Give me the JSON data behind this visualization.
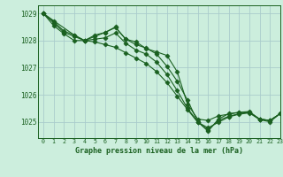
{
  "title": "Graphe pression niveau de la mer (hPa)",
  "background_color": "#cceedd",
  "grid_color": "#aacccc",
  "line_color": "#1a6020",
  "marker_color": "#1a6020",
  "xlim": [
    -0.5,
    23
  ],
  "ylim": [
    1024.4,
    1029.3
  ],
  "yticks": [
    1025,
    1026,
    1027,
    1028,
    1029
  ],
  "xticks": [
    0,
    1,
    2,
    3,
    4,
    5,
    6,
    7,
    8,
    9,
    10,
    11,
    12,
    13,
    14,
    15,
    16,
    17,
    18,
    19,
    20,
    21,
    22,
    23
  ],
  "series": [
    {
      "x": [
        0,
        1,
        2,
        3,
        4,
        5,
        6,
        7,
        8,
        9,
        10,
        11,
        12,
        13,
        14,
        15,
        16,
        17,
        18,
        19,
        20,
        21,
        22,
        23
      ],
      "y": [
        1029.0,
        1028.7,
        1028.35,
        1028.2,
        1028.0,
        1028.15,
        1028.3,
        1028.48,
        1028.05,
        1027.85,
        1027.72,
        1027.5,
        1027.05,
        1026.5,
        1025.8,
        1025.0,
        1024.65,
        1025.1,
        1025.3,
        1025.35,
        1025.35,
        1025.1,
        1025.05,
        1025.3
      ]
    },
    {
      "x": [
        0,
        1,
        2,
        3,
        4,
        5,
        6,
        7,
        8,
        9,
        10,
        11,
        12,
        13,
        14,
        15,
        16,
        17,
        18,
        19,
        20,
        21,
        22,
        23
      ],
      "y": [
        1029.0,
        1028.65,
        1028.3,
        1028.15,
        1028.0,
        1028.05,
        1028.1,
        1028.28,
        1027.9,
        1027.65,
        1027.5,
        1027.2,
        1026.75,
        1026.15,
        1025.5,
        1025.0,
        1024.7,
        1025.05,
        1025.2,
        1025.3,
        1025.35,
        1025.1,
        1025.05,
        1025.3
      ]
    },
    {
      "x": [
        0,
        3,
        4,
        5,
        6,
        7,
        8,
        9,
        10,
        11,
        12,
        13,
        14,
        15,
        16,
        17,
        18,
        19,
        20,
        21,
        22,
        23
      ],
      "y": [
        1029.0,
        1028.2,
        1028.0,
        1028.2,
        1028.3,
        1028.5,
        1028.05,
        1027.95,
        1027.7,
        1027.58,
        1027.45,
        1026.85,
        1025.65,
        1025.1,
        1025.05,
        1025.22,
        1025.28,
        1025.35,
        1025.38,
        1025.1,
        1025.05,
        1025.3
      ]
    },
    {
      "x": [
        0,
        1,
        2,
        3,
        4,
        5,
        6,
        7,
        8,
        9,
        10,
        11,
        12,
        13,
        14,
        15,
        16,
        17,
        18,
        19,
        20,
        21,
        22,
        23
      ],
      "y": [
        1029.0,
        1028.55,
        1028.25,
        1028.0,
        1028.0,
        1027.95,
        1027.85,
        1027.75,
        1027.55,
        1027.35,
        1027.15,
        1026.85,
        1026.45,
        1025.95,
        1025.45,
        1024.98,
        1024.78,
        1024.98,
        1025.18,
        1025.28,
        1025.33,
        1025.08,
        1025.0,
        1025.3
      ]
    }
  ]
}
